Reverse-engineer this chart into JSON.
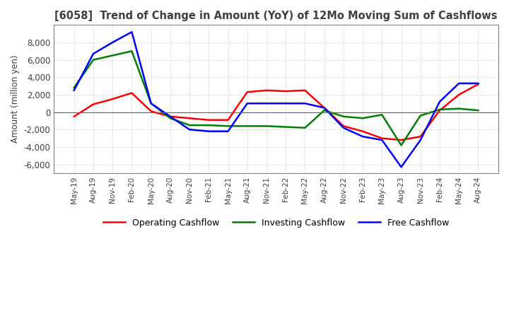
{
  "title": "[6058]  Trend of Change in Amount (YoY) of 12Mo Moving Sum of Cashflows",
  "ylabel": "Amount (million yen)",
  "ylim": [
    -7000,
    10000
  ],
  "yticks": [
    -6000,
    -4000,
    -2000,
    0,
    2000,
    4000,
    6000,
    8000
  ],
  "x_labels": [
    "May-19",
    "Aug-19",
    "Nov-19",
    "Feb-20",
    "May-20",
    "Aug-20",
    "Nov-20",
    "Feb-21",
    "May-21",
    "Aug-21",
    "Nov-21",
    "Feb-22",
    "May-22",
    "Aug-22",
    "Nov-22",
    "Feb-23",
    "May-23",
    "Aug-23",
    "Nov-23",
    "Feb-24",
    "May-24",
    "Aug-24"
  ],
  "operating_cashflow": [
    -500,
    900,
    1500,
    2200,
    100,
    -500,
    -700,
    -900,
    -900,
    2300,
    2500,
    2400,
    2500,
    500,
    -1600,
    -2200,
    -3000,
    -3200,
    -2800,
    200,
    2000,
    3200
  ],
  "investing_cashflow": [
    2800,
    6000,
    6500,
    7000,
    1000,
    -700,
    -1500,
    -1500,
    -1600,
    -1600,
    -1600,
    -1700,
    -1800,
    200,
    -500,
    -700,
    -300,
    -3800,
    -400,
    300,
    400,
    200
  ],
  "free_cashflow": [
    2500,
    6700,
    8000,
    9200,
    1000,
    -500,
    -2000,
    -2200,
    -2200,
    1000,
    1000,
    1000,
    1000,
    500,
    -1800,
    -2800,
    -3200,
    -6300,
    -3200,
    1200,
    3300,
    3300
  ],
  "operating_color": "#ff0000",
  "investing_color": "#008000",
  "free_color": "#0000ff",
  "background_color": "#ffffff",
  "grid_color": "#b0b0b0",
  "title_color": "#404040",
  "line_width": 1.8
}
